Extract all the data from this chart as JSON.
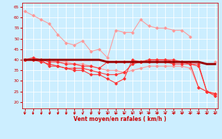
{
  "bg_color": "#cceeff",
  "grid_color": "#ffffff",
  "xlabel": "Vent moyen/en rafales ( km/h )",
  "x_ticks": [
    0,
    1,
    2,
    3,
    4,
    5,
    6,
    7,
    8,
    9,
    10,
    11,
    12,
    13,
    14,
    15,
    16,
    17,
    18,
    19,
    20,
    21,
    22,
    23
  ],
  "y_ticks": [
    20,
    25,
    30,
    35,
    40,
    45,
    50,
    55,
    60,
    65
  ],
  "ylim": [
    17,
    67
  ],
  "xlim": [
    -0.3,
    23.3
  ],
  "series": [
    {
      "color": "#ff9999",
      "lw": 0.8,
      "marker": "D",
      "ms": 1.8,
      "y": [
        63,
        61,
        59,
        57,
        52,
        48,
        47,
        49,
        44,
        45,
        41,
        54,
        53,
        53,
        59,
        56,
        55,
        55,
        54,
        54,
        51,
        null,
        null,
        null
      ]
    },
    {
      "color": "#ff9999",
      "lw": 0.8,
      "marker": "D",
      "ms": 1.8,
      "y": [
        null,
        null,
        null,
        null,
        null,
        null,
        null,
        null,
        null,
        null,
        null,
        null,
        null,
        null,
        null,
        null,
        null,
        null,
        null,
        null,
        null,
        null,
        null,
        39
      ]
    },
    {
      "color": "#ff9999",
      "lw": 0.8,
      "marker": "D",
      "ms": 1.8,
      "y": [
        40,
        40,
        40,
        40,
        39,
        39,
        38,
        38,
        37,
        36,
        35,
        35,
        34,
        35,
        36,
        37,
        37,
        37,
        37,
        37,
        36,
        27,
        25,
        23
      ]
    },
    {
      "color": "#ff3333",
      "lw": 0.8,
      "marker": "D",
      "ms": 1.8,
      "y": [
        40,
        41,
        40,
        37,
        37,
        36,
        35,
        35,
        33,
        33,
        31,
        29,
        31,
        40,
        39,
        40,
        40,
        40,
        40,
        39,
        38,
        37,
        25,
        23
      ]
    },
    {
      "color": "#ff3333",
      "lw": 0.8,
      "marker": "D",
      "ms": 1.8,
      "y": [
        40,
        40,
        39,
        38,
        37,
        36,
        36,
        36,
        35,
        34,
        33,
        33,
        34,
        38,
        39,
        39,
        39,
        39,
        38,
        38,
        38,
        27,
        25,
        24
      ]
    },
    {
      "color": "#ff3333",
      "lw": 0.8,
      "marker": "D",
      "ms": 1.8,
      "y": [
        40,
        40,
        40,
        39,
        39,
        38,
        38,
        37,
        37,
        36,
        39,
        39,
        39,
        39,
        39,
        40,
        40,
        40,
        39,
        39,
        38,
        38,
        25,
        24
      ]
    },
    {
      "color": "#990000",
      "lw": 2.2,
      "marker": null,
      "ms": 0,
      "y": [
        40,
        40,
        40,
        40,
        40,
        40,
        40,
        40,
        40,
        40,
        39,
        39,
        39,
        39,
        39,
        39,
        39,
        39,
        39,
        39,
        39,
        39,
        38,
        38
      ]
    }
  ],
  "arrow_color": "#cc0000",
  "tick_color": "#cc0000",
  "label_color": "#cc0000"
}
